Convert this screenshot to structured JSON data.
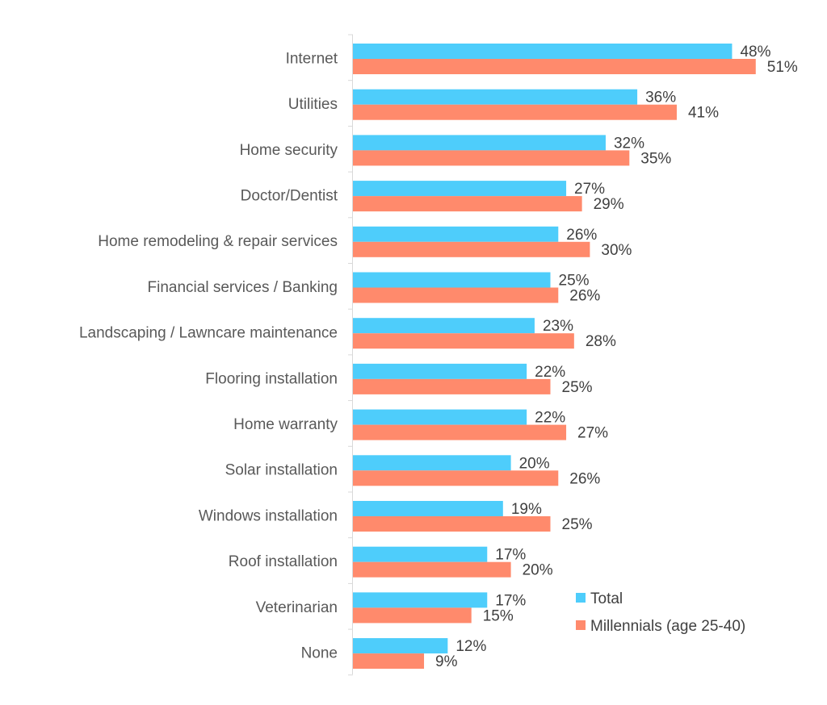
{
  "chart_data": {
    "type": "bar",
    "orientation": "horizontal",
    "categories": [
      "Internet",
      "Utilities",
      "Home security",
      "Doctor/Dentist",
      "Home remodeling & repair services",
      "Financial services / Banking",
      "Landscaping / Lawncare maintenance",
      "Flooring installation",
      "Home warranty",
      "Solar installation",
      "Windows installation",
      "Roof installation",
      "Veterinarian",
      "None"
    ],
    "series": [
      {
        "name": "Total",
        "color": "#4ecdfb",
        "values": [
          48,
          36,
          32,
          27,
          26,
          25,
          23,
          22,
          22,
          20,
          19,
          17,
          17,
          12
        ],
        "labels": [
          "48%",
          "36%",
          "32%",
          "27%",
          "26%",
          "25%",
          "23%",
          "22%",
          "22%",
          "20%",
          "19%",
          "17%",
          "17%",
          "12%"
        ]
      },
      {
        "name": "Millennials (age 25-40)",
        "color": "#ff8a6c",
        "values": [
          51,
          41,
          35,
          29,
          30,
          26,
          28,
          25,
          27,
          26,
          25,
          20,
          15,
          9
        ],
        "labels": [
          "51%",
          "41%",
          "35%",
          "29%",
          "30%",
          "26%",
          "28%",
          "25%",
          "27%",
          "26%",
          "25%",
          "20%",
          "15%",
          "9%"
        ]
      }
    ],
    "unit": "%",
    "xlim": [
      0,
      55
    ],
    "grid": false,
    "legend_position": "bottom-right"
  }
}
